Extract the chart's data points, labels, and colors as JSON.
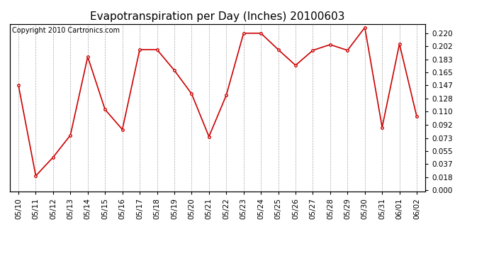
{
  "title": "Evapotranspiration per Day (Inches) 20100603",
  "copyright": "Copyright 2010 Cartronics.com",
  "x_labels": [
    "05/10",
    "05/11",
    "05/12",
    "05/13",
    "05/14",
    "05/15",
    "05/16",
    "05/17",
    "05/18",
    "05/19",
    "05/20",
    "05/21",
    "05/22",
    "05/23",
    "05/24",
    "05/25",
    "05/26",
    "05/27",
    "05/28",
    "05/29",
    "05/30",
    "05/31",
    "06/01",
    "06/02"
  ],
  "y_values": [
    0.147,
    0.02,
    0.046,
    0.077,
    0.187,
    0.113,
    0.085,
    0.197,
    0.197,
    0.168,
    0.135,
    0.075,
    0.133,
    0.22,
    0.22,
    0.197,
    0.175,
    0.196,
    0.204,
    0.196,
    0.228,
    0.088,
    0.205,
    0.103
  ],
  "line_color": "#cc0000",
  "marker": "o",
  "marker_size": 2.5,
  "background_color": "#ffffff",
  "grid_color": "#aaaaaa",
  "yticks": [
    0.0,
    0.018,
    0.037,
    0.055,
    0.073,
    0.092,
    0.11,
    0.128,
    0.147,
    0.165,
    0.183,
    0.202,
    0.22
  ],
  "title_fontsize": 11,
  "tick_fontsize": 7.5,
  "copyright_fontsize": 7
}
